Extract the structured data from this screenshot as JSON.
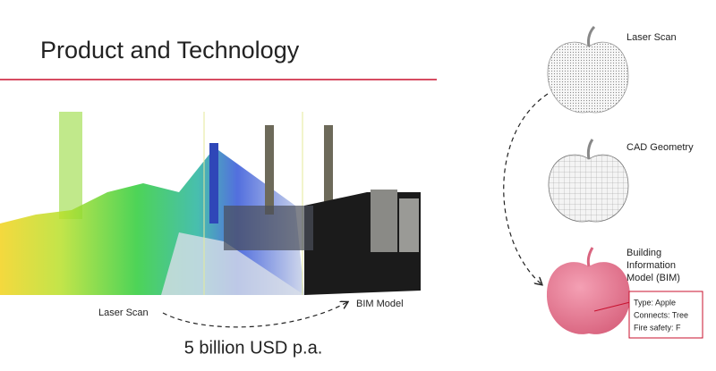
{
  "header": {
    "title": "Product and Technology"
  },
  "left": {
    "from_label": "Laser Scan",
    "to_label": "BIM Model",
    "caption": "5 billion USD p.a."
  },
  "right": {
    "stages": [
      {
        "label": "Laser Scan"
      },
      {
        "label": "CAD Geometry"
      },
      {
        "label_lines": [
          "Building",
          "Information",
          "Model (BIM)"
        ]
      }
    ],
    "properties": [
      "Type: Apple",
      "Connects: Tree",
      "Fire safety: F"
    ]
  }
}
